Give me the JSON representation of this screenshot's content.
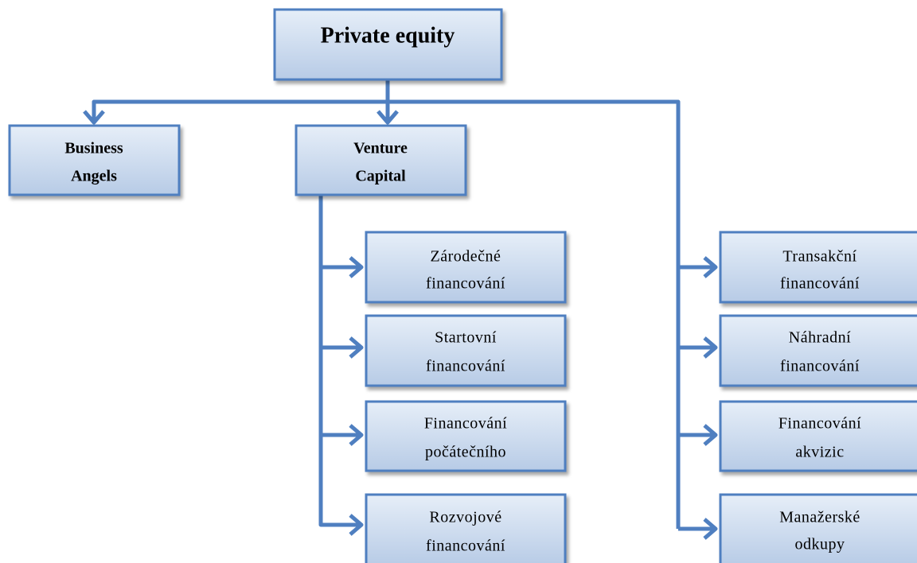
{
  "nodes": [
    {
      "lines": [
        "Private equity"
      ]
    },
    {
      "lines": [
        "Business",
        "Angels"
      ]
    },
    {
      "lines": [
        "Venture",
        "Capital"
      ]
    },
    {
      "lines": [
        "Zárodečné",
        "financování"
      ]
    },
    {
      "lines": [
        "Startovní",
        "financování"
      ]
    },
    {
      "lines": [
        "Financování",
        "počátečního"
      ]
    },
    {
      "lines": [
        "Rozvojové",
        "financování"
      ]
    },
    {
      "lines": [
        "Transakční",
        "financování"
      ]
    },
    {
      "lines": [
        "Náhradní",
        "financování"
      ]
    },
    {
      "lines": [
        "Financování",
        "akvizic"
      ]
    },
    {
      "lines": [
        "Manažerské",
        "odkupy"
      ]
    }
  ]
}
